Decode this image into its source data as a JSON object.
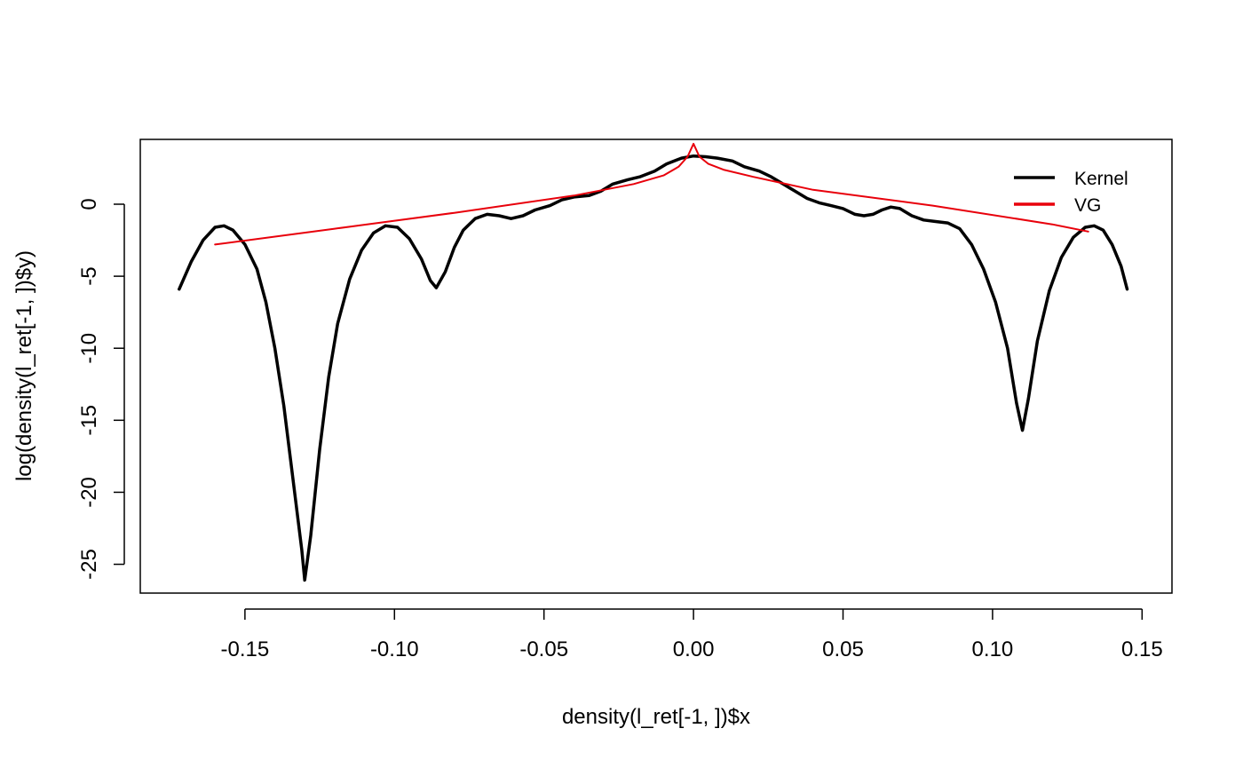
{
  "chart_data": {
    "type": "line",
    "title": "",
    "xlabel": "density(l_ret[-1, ])$x",
    "ylabel": "log(density(l_ret[-1, ])$y)",
    "xlim": [
      -0.185,
      0.16
    ],
    "ylim": [
      -27,
      4.5
    ],
    "x_ticks": [
      -0.15,
      -0.1,
      -0.05,
      0.0,
      0.05,
      0.1,
      0.15
    ],
    "x_tick_labels": [
      "-0.15",
      "-0.10",
      "-0.05",
      "0.00",
      "0.05",
      "0.10",
      "0.15"
    ],
    "y_ticks": [
      0,
      -5,
      -10,
      -15,
      -20,
      -25
    ],
    "y_tick_labels": [
      "0",
      "-5",
      "-10",
      "-15",
      "-20",
      "-25"
    ],
    "grid": false,
    "legend_position": "top-right",
    "series": [
      {
        "name": "Kernel",
        "color": "#000000",
        "points": [
          [
            -0.172,
            -5.9
          ],
          [
            -0.168,
            -4.0
          ],
          [
            -0.164,
            -2.5
          ],
          [
            -0.16,
            -1.6
          ],
          [
            -0.157,
            -1.5
          ],
          [
            -0.154,
            -1.8
          ],
          [
            -0.15,
            -2.8
          ],
          [
            -0.146,
            -4.5
          ],
          [
            -0.143,
            -6.8
          ],
          [
            -0.14,
            -10.0
          ],
          [
            -0.137,
            -14.0
          ],
          [
            -0.134,
            -19.0
          ],
          [
            -0.131,
            -24.0
          ],
          [
            -0.13,
            -26.1
          ],
          [
            -0.128,
            -23.0
          ],
          [
            -0.125,
            -17.0
          ],
          [
            -0.122,
            -12.0
          ],
          [
            -0.119,
            -8.3
          ],
          [
            -0.115,
            -5.2
          ],
          [
            -0.111,
            -3.2
          ],
          [
            -0.107,
            -2.0
          ],
          [
            -0.103,
            -1.5
          ],
          [
            -0.099,
            -1.6
          ],
          [
            -0.095,
            -2.4
          ],
          [
            -0.091,
            -3.8
          ],
          [
            -0.088,
            -5.3
          ],
          [
            -0.086,
            -5.8
          ],
          [
            -0.083,
            -4.7
          ],
          [
            -0.08,
            -3.0
          ],
          [
            -0.077,
            -1.8
          ],
          [
            -0.073,
            -1.0
          ],
          [
            -0.069,
            -0.7
          ],
          [
            -0.065,
            -0.8
          ],
          [
            -0.061,
            -1.0
          ],
          [
            -0.057,
            -0.8
          ],
          [
            -0.053,
            -0.4
          ],
          [
            -0.048,
            -0.1
          ],
          [
            -0.044,
            0.3
          ],
          [
            -0.04,
            0.5
          ],
          [
            -0.035,
            0.6
          ],
          [
            -0.031,
            0.9
          ],
          [
            -0.027,
            1.4
          ],
          [
            -0.022,
            1.7
          ],
          [
            -0.018,
            1.9
          ],
          [
            -0.013,
            2.3
          ],
          [
            -0.009,
            2.8
          ],
          [
            -0.004,
            3.2
          ],
          [
            0.0,
            3.35
          ],
          [
            0.004,
            3.3
          ],
          [
            0.008,
            3.2
          ],
          [
            0.013,
            3.0
          ],
          [
            0.017,
            2.6
          ],
          [
            0.022,
            2.3
          ],
          [
            0.026,
            1.9
          ],
          [
            0.03,
            1.4
          ],
          [
            0.034,
            0.9
          ],
          [
            0.038,
            0.4
          ],
          [
            0.042,
            0.1
          ],
          [
            0.046,
            -0.1
          ],
          [
            0.05,
            -0.3
          ],
          [
            0.054,
            -0.7
          ],
          [
            0.057,
            -0.8
          ],
          [
            0.06,
            -0.7
          ],
          [
            0.063,
            -0.4
          ],
          [
            0.066,
            -0.2
          ],
          [
            0.069,
            -0.3
          ],
          [
            0.073,
            -0.8
          ],
          [
            0.077,
            -1.1
          ],
          [
            0.081,
            -1.2
          ],
          [
            0.085,
            -1.3
          ],
          [
            0.089,
            -1.7
          ],
          [
            0.093,
            -2.8
          ],
          [
            0.097,
            -4.5
          ],
          [
            0.101,
            -6.8
          ],
          [
            0.105,
            -10.0
          ],
          [
            0.108,
            -13.8
          ],
          [
            0.11,
            -15.7
          ],
          [
            0.112,
            -13.5
          ],
          [
            0.115,
            -9.5
          ],
          [
            0.119,
            -6.0
          ],
          [
            0.123,
            -3.7
          ],
          [
            0.127,
            -2.3
          ],
          [
            0.131,
            -1.6
          ],
          [
            0.134,
            -1.5
          ],
          [
            0.137,
            -1.8
          ],
          [
            0.14,
            -2.8
          ],
          [
            0.143,
            -4.3
          ],
          [
            0.145,
            -5.9
          ]
        ]
      },
      {
        "name": "VG",
        "color": "#e8000b",
        "points": [
          [
            -0.16,
            -2.8
          ],
          [
            -0.12,
            -1.7
          ],
          [
            -0.08,
            -0.6
          ],
          [
            -0.04,
            0.6
          ],
          [
            -0.02,
            1.4
          ],
          [
            -0.01,
            2.0
          ],
          [
            -0.005,
            2.6
          ],
          [
            -0.002,
            3.3
          ],
          [
            0.0,
            4.2
          ],
          [
            0.002,
            3.3
          ],
          [
            0.005,
            2.8
          ],
          [
            0.01,
            2.4
          ],
          [
            0.02,
            1.9
          ],
          [
            0.04,
            1.0
          ],
          [
            0.08,
            -0.1
          ],
          [
            0.12,
            -1.4
          ],
          [
            0.132,
            -1.9
          ]
        ]
      }
    ]
  }
}
